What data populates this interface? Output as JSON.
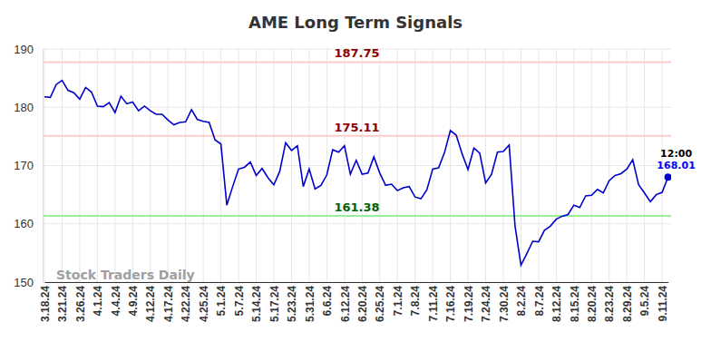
{
  "chart_data": {
    "type": "line",
    "title": "AME Long Term Signals",
    "watermark": "Stock Traders Daily",
    "categories": [
      "3.18.24",
      null,
      null,
      "3.21.24",
      null,
      null,
      "3.26.24",
      null,
      null,
      "4.1.24",
      null,
      null,
      "4.4.24",
      null,
      null,
      "4.9.24",
      null,
      null,
      "4.12.24",
      null,
      null,
      "4.17.24",
      null,
      null,
      "4.22.24",
      null,
      null,
      "4.25.24",
      null,
      null,
      "5.1.24",
      null,
      null,
      "5.7.24",
      null,
      null,
      "5.14.24",
      null,
      null,
      "5.17.24",
      null,
      null,
      "5.23.24",
      null,
      null,
      "5.31.24",
      null,
      null,
      "6.6.24",
      null,
      null,
      "6.12.24",
      null,
      null,
      "6.20.24",
      null,
      null,
      "6.25.24",
      null,
      null,
      "7.1.24",
      null,
      null,
      "7.8.24",
      null,
      null,
      "7.11.24",
      null,
      null,
      "7.16.24",
      null,
      null,
      "7.19.24",
      null,
      null,
      "7.24.24",
      null,
      null,
      "7.30.24",
      null,
      null,
      "8.2.24",
      null,
      null,
      "8.7.24",
      null,
      null,
      "8.12.24",
      null,
      null,
      "8.15.24",
      null,
      null,
      "8.20.24",
      null,
      null,
      "8.23.24",
      null,
      null,
      "8.29.24",
      null,
      null,
      "9.5.24",
      null,
      null,
      "9.11.24",
      null
    ],
    "series": [
      {
        "color": "#0000cc",
        "values": [
          181.8,
          181.7,
          183.9,
          184.6,
          182.9,
          182.5,
          181.4,
          183.4,
          182.6,
          180.2,
          180.1,
          180.8,
          179.1,
          181.9,
          180.6,
          180.9,
          179.4,
          180.2,
          179.4,
          178.8,
          178.8,
          177.8,
          177.0,
          177.4,
          177.5,
          179.6,
          177.9,
          177.6,
          177.4,
          174.4,
          173.7,
          163.2,
          166.4,
          169.4,
          169.7,
          170.6,
          168.3,
          169.5,
          167.9,
          166.7,
          169.0,
          173.9,
          172.6,
          173.4,
          166.4,
          169.4,
          166.0,
          166.6,
          168.4,
          172.7,
          172.3,
          173.4,
          168.5,
          170.9,
          168.5,
          168.7,
          171.5,
          168.7,
          166.6,
          166.8,
          165.7,
          166.2,
          166.4,
          164.6,
          164.3,
          165.8,
          169.4,
          169.6,
          172.2,
          176.0,
          175.2,
          172.0,
          169.3,
          173.0,
          172.1,
          167.0,
          168.5,
          172.3,
          172.4,
          173.5,
          159.6,
          152.9,
          154.9,
          157.0,
          156.9,
          158.9,
          159.6,
          160.8,
          161.3,
          161.6,
          163.2,
          162.8,
          164.8,
          164.9,
          165.9,
          165.3,
          167.4,
          168.3,
          168.6,
          169.4,
          171.0,
          166.7,
          165.3,
          163.8,
          165.0,
          165.4,
          168.01
        ]
      }
    ],
    "ylim": [
      150,
      190
    ],
    "yticks": [
      150,
      160,
      170,
      180,
      190
    ],
    "grid": true,
    "reference_lines": [
      {
        "value": 187.75,
        "label": "187.75",
        "color": "#ffcccc",
        "label_color": "#8b0000"
      },
      {
        "value": 175.11,
        "label": "175.11",
        "color": "#ffcccc",
        "label_color": "#8b0000"
      },
      {
        "value": 161.38,
        "label": "161.38",
        "color": "#99ee99",
        "label_color": "#006400"
      }
    ],
    "annotations": [
      {
        "text": "12:00",
        "index": 106,
        "color": "#000000"
      },
      {
        "text": "168.01",
        "index": 106,
        "color": "#0000ff"
      }
    ]
  }
}
